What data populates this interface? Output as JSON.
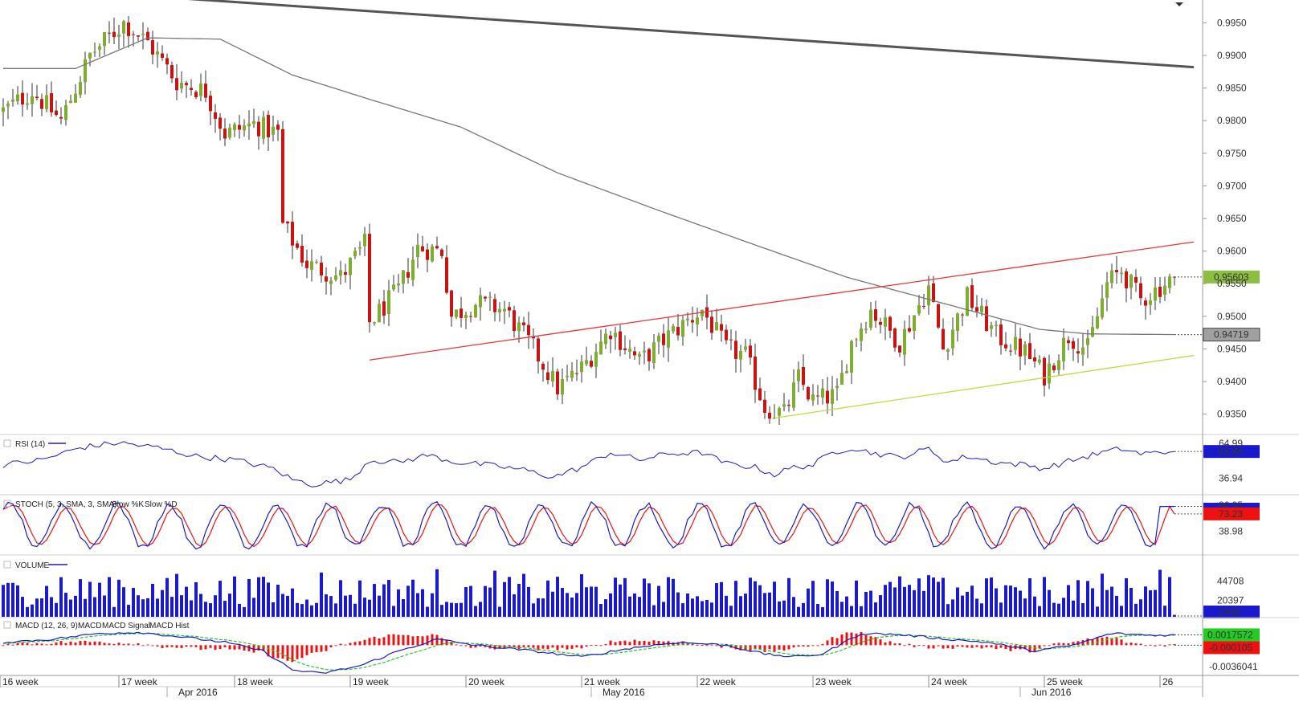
{
  "colors": {
    "bull": "#7fad2e",
    "bear": "#cc1111",
    "wick": "#333333",
    "sma": "#777777",
    "downtrend": "#555555",
    "resistance": "#ee3333",
    "support": "#bbdd44",
    "rsi": "#1a1acc",
    "stoch_k": "#1a1acc",
    "stoch_d": "#ee1111",
    "volume": "#1a1acc",
    "macd": "#1a1acc",
    "macd_signal": "#22cc22",
    "macd_hist": "#ee1111",
    "price_badge": "#8cbf3f",
    "sma_badge": "#9a9a9a",
    "rsi_badge": "#1a1acc",
    "stoch_badge_k": "#1a1acc",
    "stoch_badge_d": "#ee1111",
    "volume_badge": "#1a1acc",
    "macd_badge_pos": "#22cc22",
    "macd_badge_neg": "#ee1111"
  },
  "chart_data": {
    "type": "candlestick",
    "price_axis": {
      "ticks": [
        "0.9950",
        "0.9900",
        "0.9850",
        "0.9800",
        "0.9750",
        "0.9700",
        "0.9650",
        "0.9600",
        "0.9550",
        "0.9500",
        "0.9450",
        "0.9400",
        "0.9350"
      ],
      "ylim": [
        0.932,
        0.9985
      ]
    },
    "x_axis": {
      "weeks": [
        {
          "label": "16 week",
          "bar": 0
        },
        {
          "label": "17 week",
          "bar": 24
        },
        {
          "label": "18 week",
          "bar": 48
        },
        {
          "label": "19 week",
          "bar": 72
        },
        {
          "label": "20 week",
          "bar": 96
        },
        {
          "label": "21 week",
          "bar": 120
        },
        {
          "label": "22 week",
          "bar": 144
        },
        {
          "label": "23 week",
          "bar": 168
        },
        {
          "label": "24 week",
          "bar": 192
        },
        {
          "label": "25 week",
          "bar": 216
        },
        {
          "label": "26",
          "bar": 240
        }
      ],
      "months": [
        {
          "label": "Apr 2016",
          "bar": 36
        },
        {
          "label": "May 2016",
          "bar": 124
        },
        {
          "label": "Jun 2016",
          "bar": 213
        }
      ]
    },
    "price_path": [
      [
        0,
        0.9815
      ],
      [
        6,
        0.9845
      ],
      [
        12,
        0.98
      ],
      [
        18,
        0.99
      ],
      [
        25,
        0.995
      ],
      [
        30,
        0.992
      ],
      [
        36,
        0.986
      ],
      [
        42,
        0.9845
      ],
      [
        46,
        0.978
      ],
      [
        52,
        0.9795
      ],
      [
        57,
        0.978
      ],
      [
        58,
        0.964
      ],
      [
        63,
        0.958
      ],
      [
        70,
        0.956
      ],
      [
        75,
        0.961
      ],
      [
        76,
        0.949
      ],
      [
        82,
        0.954
      ],
      [
        86,
        0.9605
      ],
      [
        91,
        0.96
      ],
      [
        93,
        0.95
      ],
      [
        98,
        0.952
      ],
      [
        104,
        0.951
      ],
      [
        110,
        0.945
      ],
      [
        115,
        0.939
      ],
      [
        120,
        0.942
      ],
      [
        126,
        0.948
      ],
      [
        132,
        0.943
      ],
      [
        138,
        0.947
      ],
      [
        145,
        0.951
      ],
      [
        150,
        0.945
      ],
      [
        154,
        0.944
      ],
      [
        158,
        0.936
      ],
      [
        162,
        0.935
      ],
      [
        165,
        0.9405
      ],
      [
        168,
        0.937
      ],
      [
        173,
        0.938
      ],
      [
        176,
        0.946
      ],
      [
        180,
        0.951
      ],
      [
        186,
        0.946
      ],
      [
        192,
        0.9545
      ],
      [
        195,
        0.945
      ],
      [
        200,
        0.953
      ],
      [
        206,
        0.947
      ],
      [
        212,
        0.9445
      ],
      [
        216,
        0.941
      ],
      [
        221,
        0.947
      ],
      [
        225,
        0.945
      ],
      [
        229,
        0.955
      ],
      [
        232,
        0.957
      ],
      [
        236,
        0.9525
      ],
      [
        240,
        0.9545
      ],
      [
        243,
        0.956
      ]
    ],
    "bars_total": 244,
    "last_close": 0.95603,
    "last_close_label": "0.95603",
    "sma_value": 0.94719,
    "sma_label": "0.94719",
    "sma_path": [
      [
        0,
        0.988
      ],
      [
        15,
        0.988
      ],
      [
        30,
        0.9927
      ],
      [
        45,
        0.9925
      ],
      [
        60,
        0.987
      ],
      [
        75,
        0.9835
      ],
      [
        95,
        0.979
      ],
      [
        115,
        0.972
      ],
      [
        135,
        0.9665
      ],
      [
        155,
        0.9612
      ],
      [
        175,
        0.956
      ],
      [
        190,
        0.953
      ],
      [
        200,
        0.951
      ],
      [
        215,
        0.948
      ],
      [
        225,
        0.9473
      ],
      [
        243,
        0.9472
      ]
    ],
    "trendlines": [
      {
        "kind": "downtrend",
        "from": [
          32,
          0.999
        ],
        "to": [
          247,
          0.9882
        ]
      },
      {
        "kind": "resistance",
        "from": [
          76,
          0.9433
        ],
        "to": [
          247,
          0.9614
        ]
      },
      {
        "kind": "support",
        "from": [
          160,
          0.9344
        ],
        "to": [
          247,
          0.944
        ]
      }
    ],
    "indicators": {
      "rsi": {
        "title": "RSI (14)",
        "ticks": [
          "36.94"
        ],
        "partial_tick": "64.99",
        "current": "58.84",
        "ylim": [
          25,
          72
        ],
        "path": [
          [
            0,
            48
          ],
          [
            8,
            52
          ],
          [
            16,
            62
          ],
          [
            24,
            66
          ],
          [
            32,
            62
          ],
          [
            40,
            55
          ],
          [
            48,
            52
          ],
          [
            56,
            45
          ],
          [
            60,
            36
          ],
          [
            64,
            32
          ],
          [
            72,
            36
          ],
          [
            76,
            52
          ],
          [
            82,
            50
          ],
          [
            88,
            56
          ],
          [
            94,
            50
          ],
          [
            100,
            48
          ],
          [
            108,
            44
          ],
          [
            114,
            38
          ],
          [
            120,
            46
          ],
          [
            126,
            58
          ],
          [
            132,
            52
          ],
          [
            138,
            57
          ],
          [
            145,
            58
          ],
          [
            150,
            49
          ],
          [
            156,
            46
          ],
          [
            160,
            40
          ],
          [
            164,
            46
          ],
          [
            168,
            48
          ],
          [
            172,
            58
          ],
          [
            176,
            62
          ],
          [
            180,
            58
          ],
          [
            186,
            54
          ],
          [
            192,
            61
          ],
          [
            196,
            50
          ],
          [
            200,
            55
          ],
          [
            206,
            50
          ],
          [
            212,
            48
          ],
          [
            216,
            45
          ],
          [
            222,
            52
          ],
          [
            228,
            58
          ],
          [
            232,
            61
          ],
          [
            236,
            57
          ],
          [
            240,
            58
          ],
          [
            243,
            58.84
          ]
        ]
      },
      "stoch": {
        "title": "STOCH (5, 3, SMA, 3, SMA):",
        "legend_k": "Slow %K",
        "legend_d": "Slow %D",
        "ticks": [
          "38.98"
        ],
        "partial_tick": "86.95",
        "current_k": "73.23",
        "ylim": [
          0,
          100
        ],
        "cycle_bars": 11
      },
      "volume": {
        "title": "VOLUME",
        "ticks": [
          "44708",
          "20397"
        ],
        "current": "2408",
        "ymax": 70000
      },
      "macd": {
        "title": "MACD (12, 26, 9):",
        "legend_macd": "MACD",
        "legend_signal": "MACD Signal",
        "legend_hist": "MACD Hist",
        "ticks": [
          "-0.0036041"
        ],
        "current_macd": "0.0017572",
        "current_hist": "-0.000105",
        "ylim": [
          -0.005,
          0.004
        ],
        "path": [
          [
            0,
            0.0005
          ],
          [
            10,
            0.001
          ],
          [
            20,
            0.002
          ],
          [
            28,
            0.0022
          ],
          [
            36,
            0.0015
          ],
          [
            46,
            0.0005
          ],
          [
            54,
            -0.001
          ],
          [
            60,
            -0.0042
          ],
          [
            66,
            -0.0048
          ],
          [
            74,
            -0.0035
          ],
          [
            82,
            -0.001
          ],
          [
            90,
            0.001
          ],
          [
            98,
            0.0
          ],
          [
            110,
            -0.001
          ],
          [
            120,
            -0.002
          ],
          [
            130,
            -0.0005
          ],
          [
            140,
            0.0005
          ],
          [
            150,
            0.0
          ],
          [
            158,
            -0.0015
          ],
          [
            164,
            -0.002
          ],
          [
            170,
            -0.0015
          ],
          [
            178,
            0.002
          ],
          [
            186,
            0.0018
          ],
          [
            196,
            0.001
          ],
          [
            204,
            0.0005
          ],
          [
            214,
            -0.001
          ],
          [
            222,
            0.0
          ],
          [
            230,
            0.002
          ],
          [
            238,
            0.0017
          ],
          [
            243,
            0.0017
          ]
        ]
      }
    }
  }
}
